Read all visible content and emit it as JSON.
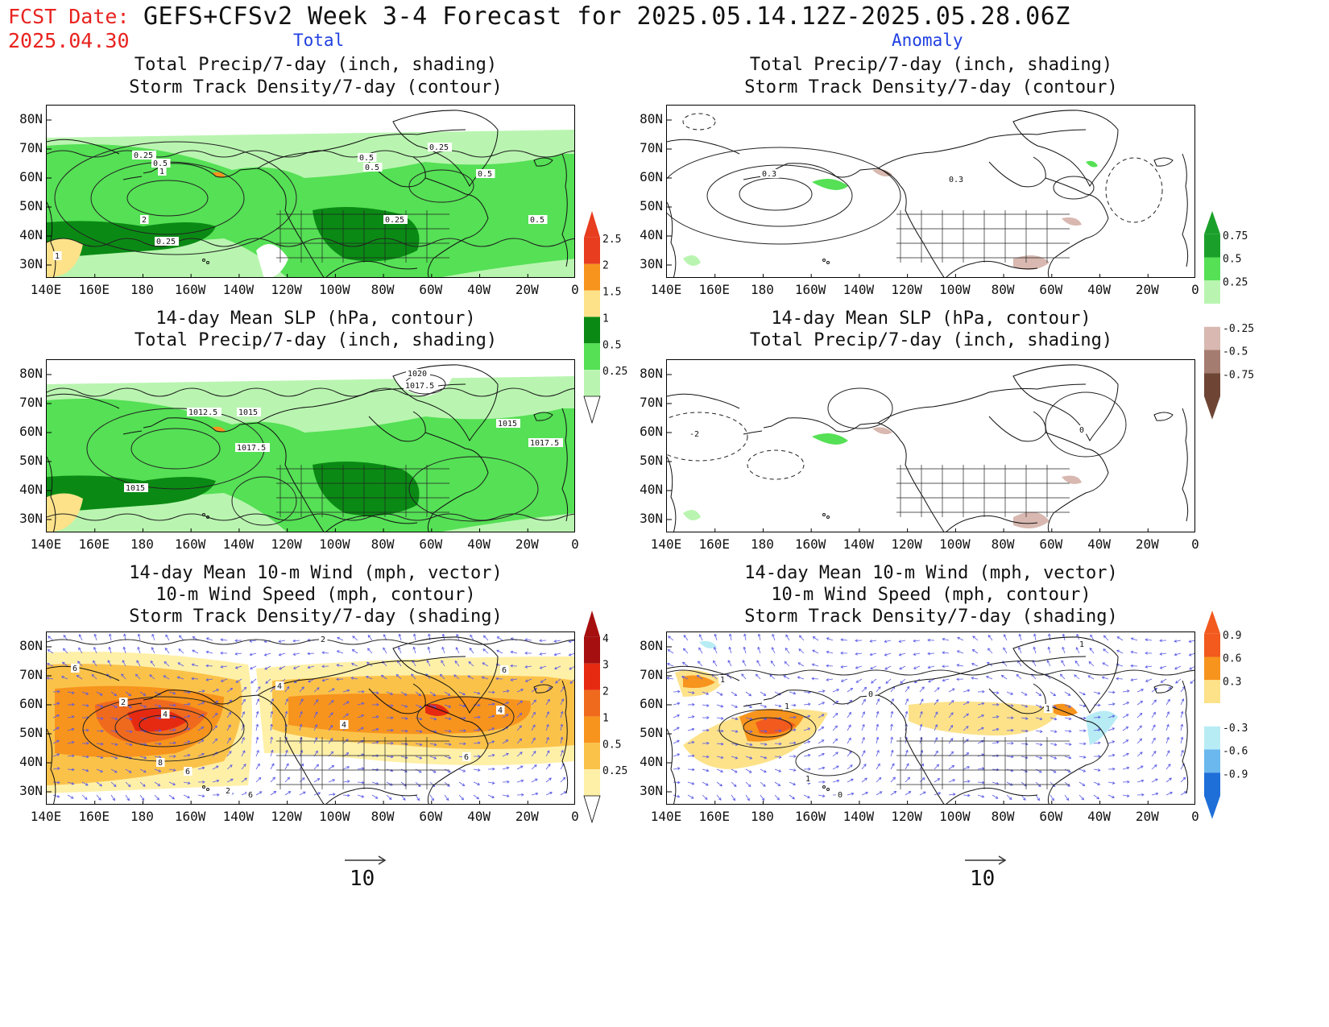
{
  "header": {
    "fcst_label": "FCST Date:",
    "fcst_date": "2025.04.30",
    "title": "GEFS+CFSv2 Week 3-4 Forecast for 2025.05.14.12Z-2025.05.28.06Z",
    "left_col": "Total",
    "right_col": "Anomaly"
  },
  "colors": {
    "fcst": "#e8231f",
    "col_label": "#1f3fe0",
    "wind_vector": "#5a5ae6"
  },
  "axes": {
    "lat_labels": [
      "80N",
      "70N",
      "60N",
      "50N",
      "40N",
      "30N"
    ],
    "lon_labels": [
      "140E",
      "160E",
      "180",
      "160W",
      "140W",
      "120W",
      "100W",
      "80W",
      "60W",
      "40W",
      "20W",
      "0"
    ]
  },
  "panels": {
    "r1_left": {
      "title1": "Total Precip/7-day (inch, shading)",
      "title2": "Storm Track Density/7-day (contour)",
      "contour_labels": [
        "0.25",
        "0.5",
        "1",
        "2",
        "0.25",
        "0.5",
        "0.25",
        "0.25",
        "0.5",
        "1",
        "0.5",
        "0.5"
      ]
    },
    "r1_right": {
      "title1": "Total Precip/7-day (inch, shading)",
      "title2": "Storm Track Density/7-day (contour)",
      "contour_labels": [
        "0.3",
        "0.3"
      ]
    },
    "r2_left": {
      "title1": "14-day Mean SLP (hPa, contour)",
      "title2": "Total Precip/7-day (inch, shading)",
      "contour_labels": [
        "1020",
        "1017.5",
        "1012.5",
        "1015",
        "1015",
        "1017.5",
        "1017.5",
        "1015"
      ]
    },
    "r2_right": {
      "title1": "14-day Mean SLP (hPa, contour)",
      "title2": "Total Precip/7-day (inch, shading)",
      "contour_labels": [
        "-2",
        "0"
      ]
    },
    "r3_left": {
      "title1": "14-day Mean 10-m Wind (mph, vector)",
      "title2": "10-m Wind Speed (mph, contour)",
      "title3": "Storm Track Density/7-day (shading)",
      "contour_labels": [
        "6",
        "2",
        "4",
        "4",
        "8",
        "6",
        "2",
        "4",
        "6",
        "4",
        "6",
        "2",
        "6"
      ]
    },
    "r3_right": {
      "title1": "14-day Mean 10-m Wind (mph, vector)",
      "title2": "10-m Wind Speed (mph, contour)",
      "title3": "Storm Track Density/7-day (shading)",
      "contour_labels": [
        "1",
        "1",
        "0",
        "1",
        "1",
        "0",
        "1"
      ]
    }
  },
  "colorbars": {
    "precip_total": {
      "labels": [
        "2.5",
        "2",
        "1.5",
        "1",
        "0.5",
        "0.25"
      ],
      "colors": [
        "#e83d1f",
        "#f7941d",
        "#fde28a",
        "#0a8a14",
        "#55e055",
        "#b9f5b0"
      ]
    },
    "precip_anom": {
      "labels": [
        "0.75",
        "0.5",
        "0.25",
        "-0.25",
        "-0.5",
        "-0.75"
      ],
      "colors": [
        "#1aa02a",
        "#55e055",
        "#b9f5b0",
        "#ffffff",
        "#d8b8b0",
        "#a57c70",
        "#6e4535"
      ]
    },
    "track_total": {
      "labels": [
        "4",
        "3",
        "2",
        "1",
        "0.5",
        "0.25"
      ],
      "colors": [
        "#a50f0f",
        "#e62a12",
        "#f06a1e",
        "#f7941d",
        "#fbc24a",
        "#fff0a8"
      ]
    },
    "track_anom": {
      "labels": [
        "0.9",
        "0.6",
        "0.3",
        "-0.3",
        "-0.6",
        "-0.9"
      ],
      "colors": [
        "#f25a1e",
        "#f7941d",
        "#fde28a",
        "#ffffff",
        "#b8ecf5",
        "#6ab8ee",
        "#1e6fd8"
      ]
    }
  },
  "vector_ref": {
    "left": "10",
    "right": "10"
  }
}
